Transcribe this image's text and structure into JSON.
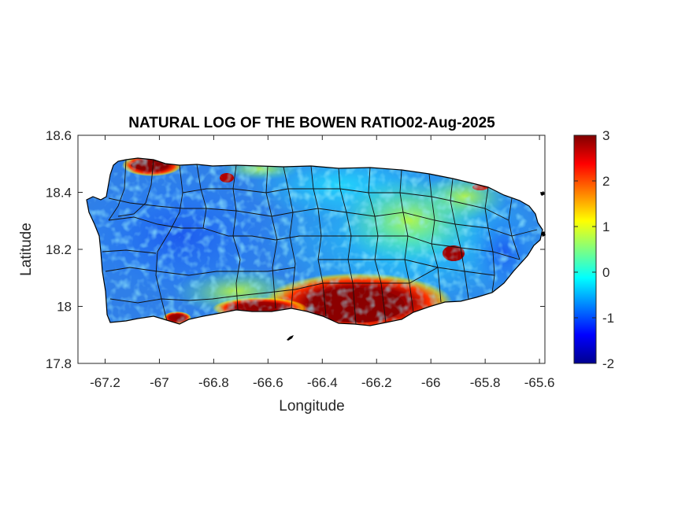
{
  "map": {
    "title": "NATURAL LOG OF THE BOWEN RATIO02-Aug-2025",
    "xlabel": "Longitude",
    "ylabel": "Latitude",
    "xlim": [
      -67.3,
      -65.58
    ],
    "ylim": [
      17.8,
      18.6
    ],
    "xticks": [
      -67.2,
      -67,
      -66.8,
      -66.6,
      -66.4,
      -66.2,
      -66,
      -65.8,
      -65.6
    ],
    "xtick_labels": [
      "-67.2",
      "-67",
      "-66.8",
      "-66.6",
      "-66.4",
      "-66.2",
      "-66",
      "-65.8",
      "-65.6"
    ],
    "yticks": [
      17.8,
      18,
      18.2,
      18.4,
      18.6
    ],
    "ytick_labels": [
      "17.8",
      "18",
      "18.2",
      "18.4",
      "18.6"
    ],
    "colormap": "jet",
    "colorbar": {
      "min": -2,
      "max": 3,
      "ticks": [
        -2,
        -1,
        0,
        1,
        2,
        3
      ],
      "tick_labels": [
        "-2",
        "-1",
        "0",
        "1",
        "2",
        "3"
      ]
    },
    "region": "Puerto Rico",
    "hotspots": [
      {
        "name": "south-coast-high",
        "lon": -66.3,
        "lat": 17.98,
        "value": 3
      },
      {
        "name": "northwest-coast-high",
        "lon": -67.08,
        "lat": 18.5,
        "value": 3
      },
      {
        "name": "east-interior-high",
        "lon": -65.93,
        "lat": 18.2,
        "value": 2.8
      },
      {
        "name": "southwest-coast-high",
        "lon": -66.95,
        "lat": 17.96,
        "value": 2.6
      }
    ]
  }
}
